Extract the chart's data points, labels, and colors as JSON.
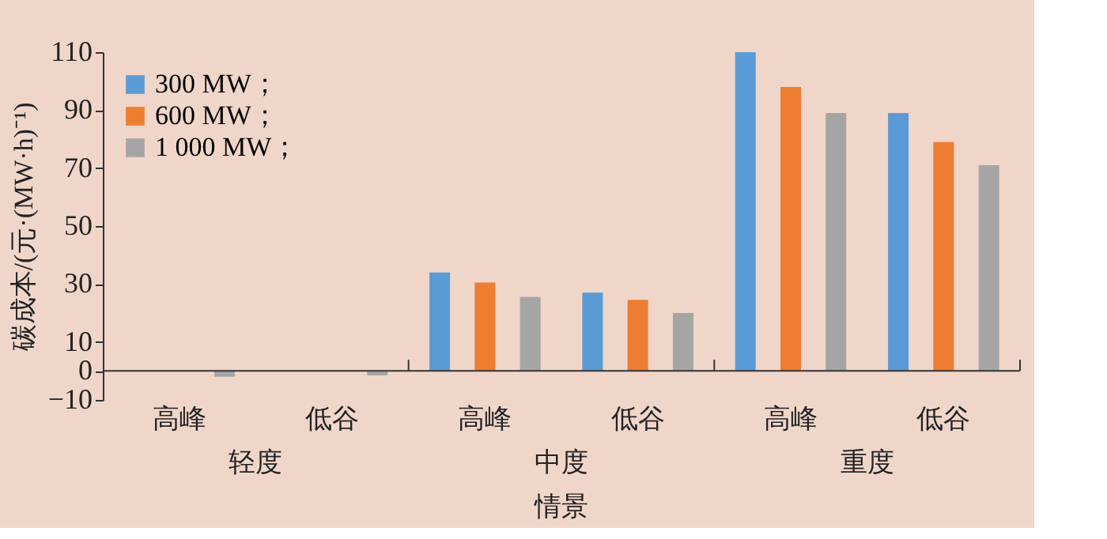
{
  "chart_data": {
    "type": "bar",
    "categories": [
      "高峰",
      "低谷",
      "高峰",
      "低谷",
      "高峰",
      "低谷"
    ],
    "series": [
      {
        "name": "300 MW；",
        "color": "#5b9bd5",
        "values": [
          0,
          0,
          34,
          27,
          110,
          89
        ]
      },
      {
        "name": "600 MW；",
        "color": "#ed7d31",
        "values": [
          0,
          0,
          30.5,
          24.5,
          98,
          79
        ]
      },
      {
        "name": "1 000 MW；",
        "color": "#a5a5a5",
        "values": [
          -2,
          -1.5,
          25.5,
          20,
          89,
          71
        ]
      }
    ],
    "annotations": [
      "轻度",
      "中度",
      "重度"
    ],
    "xlabel": "情景",
    "ylabel": "碳成本/(元·(MW·h)⁻¹)",
    "ylim": [
      -10,
      110
    ],
    "yticks": [
      -10,
      0,
      10,
      30,
      50,
      70,
      90,
      110
    ],
    "grid": false,
    "legend": "top left"
  }
}
